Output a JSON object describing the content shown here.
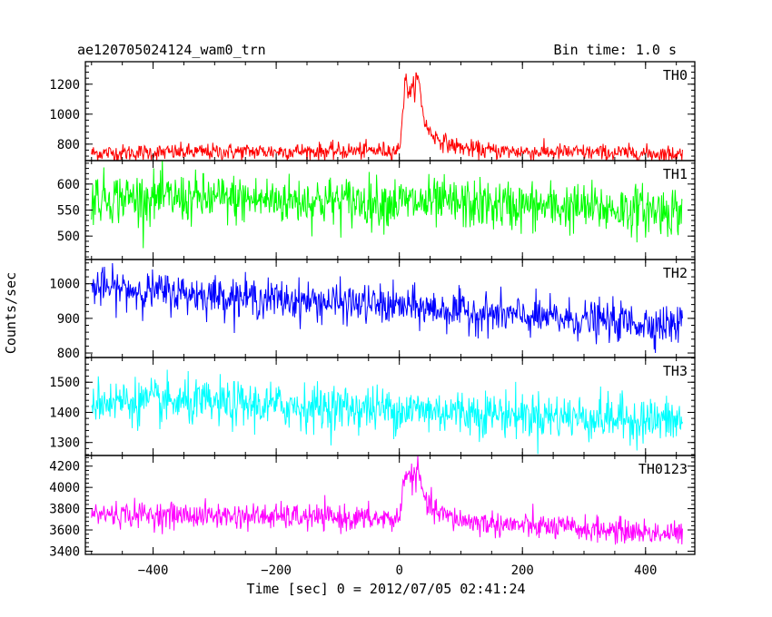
{
  "chart_data": {
    "type": "line",
    "title_left": "ae120705024124_wam0_trn",
    "title_right": "Bin time: 1.0 s",
    "xlabel": "Time [sec] 0 = 2012/07/05 02:41:24",
    "ylabel": "Counts/sec",
    "xlim": [
      -510,
      480
    ],
    "x_ticks": [
      -400,
      -200,
      0,
      200,
      400
    ],
    "x_tick_labels": [
      "−400",
      "−200",
      "0",
      "200",
      "400"
    ],
    "x_start": -500,
    "x_end": 460,
    "bin_time": 1.0,
    "panels": [
      {
        "name": "TH0",
        "color": "#ff0000",
        "ylim": [
          690,
          1350
        ],
        "y_ticks": [
          800,
          1000,
          1200
        ],
        "y_tick_labels": [
          "800",
          "1000",
          "1200"
        ],
        "baseline": [
          [
            -500,
            740
          ],
          [
            -200,
            752
          ],
          [
            -100,
            752
          ],
          [
            0,
            760
          ],
          [
            460,
            735
          ]
        ],
        "noise_amplitude": 28,
        "burst": {
          "t_start": 0,
          "t_peak": 10,
          "peak": 1230,
          "decay": 30,
          "secondary": {
            "t": 30,
            "amp": 230,
            "width": 8
          }
        }
      },
      {
        "name": "TH1",
        "color": "#00ff00",
        "ylim": [
          455,
          645
        ],
        "y_ticks": [
          500,
          550,
          600
        ],
        "y_tick_labels": [
          "500",
          "550",
          "600"
        ],
        "baseline": [
          [
            -500,
            575
          ],
          [
            0,
            565
          ],
          [
            460,
            548
          ]
        ],
        "noise_amplitude": 24,
        "burst": null
      },
      {
        "name": "TH2",
        "color": "#0000ff",
        "ylim": [
          787,
          1070
        ],
        "y_ticks": [
          800,
          900,
          1000
        ],
        "y_tick_labels": [
          "800",
          "900",
          "1000"
        ],
        "baseline": [
          [
            -500,
            990
          ],
          [
            -200,
            955
          ],
          [
            0,
            935
          ],
          [
            200,
            905
          ],
          [
            460,
            880
          ]
        ],
        "noise_amplitude": 28,
        "burst": null
      },
      {
        "name": "TH3",
        "color": "#00ffff",
        "ylim": [
          1257,
          1582
        ],
        "y_ticks": [
          1300,
          1400,
          1500
        ],
        "y_tick_labels": [
          "1300",
          "1400",
          "1500"
        ],
        "baseline": [
          [
            -500,
            1440
          ],
          [
            0,
            1410
          ],
          [
            460,
            1370
          ]
        ],
        "noise_amplitude": 38,
        "burst": null
      },
      {
        "name": "TH0123",
        "color": "#ff00ff",
        "ylim": [
          3370,
          4300
        ],
        "y_ticks": [
          3400,
          3600,
          3800,
          4000,
          4200
        ],
        "y_tick_labels": [
          "3400",
          "3600",
          "3800",
          "4000",
          "4200"
        ],
        "baseline": [
          [
            -500,
            3750
          ],
          [
            -200,
            3725
          ],
          [
            0,
            3700
          ],
          [
            460,
            3560
          ]
        ],
        "noise_amplitude": 60,
        "burst": {
          "t_start": 0,
          "t_peak": 10,
          "peak": 4180,
          "decay": 30,
          "secondary": {
            "t": 30,
            "amp": 200,
            "width": 8
          }
        }
      }
    ]
  }
}
